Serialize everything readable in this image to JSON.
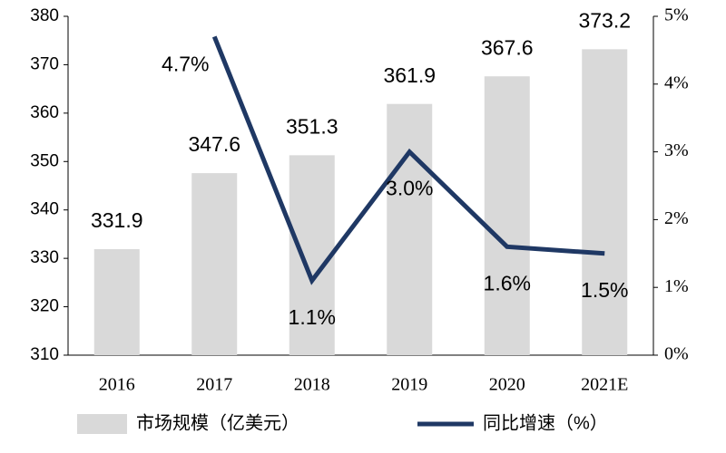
{
  "chart_data": {
    "type": "combo",
    "categories": [
      "2016",
      "2017",
      "2018",
      "2019",
      "2020",
      "2021E"
    ],
    "series": [
      {
        "name": "市场规模（亿美元）",
        "type": "bar",
        "color": "#d9d9d9",
        "values": [
          331.9,
          347.6,
          351.3,
          361.9,
          367.6,
          373.2
        ]
      },
      {
        "name": "同比增速（%）",
        "type": "line",
        "axis": "y2",
        "color": "#1f3864",
        "values": [
          null,
          4.7,
          1.1,
          3.0,
          1.6,
          1.5
        ],
        "value_labels": [
          null,
          "4.7%",
          "1.1%",
          "3.0%",
          "1.6%",
          "1.5%"
        ]
      }
    ],
    "ylim": [
      310,
      380
    ],
    "yticks": [
      310,
      320,
      330,
      340,
      350,
      360,
      370,
      380
    ],
    "y2lim": [
      0,
      5
    ],
    "y2ticks": [
      {
        "value": 0,
        "label": "0%"
      },
      {
        "value": 1,
        "label": "1%"
      },
      {
        "value": 2,
        "label": "2%"
      },
      {
        "value": 3,
        "label": "3%"
      },
      {
        "value": 4,
        "label": "4%"
      },
      {
        "value": 5,
        "label": "5%"
      }
    ],
    "legend": "bottom"
  }
}
